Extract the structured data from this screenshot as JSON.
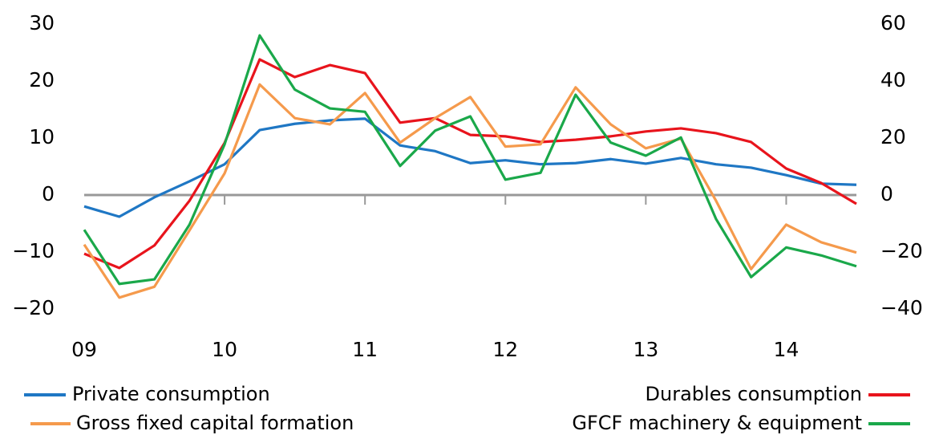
{
  "chart_data": {
    "type": "line",
    "categories": [
      "09",
      null,
      null,
      null,
      "10",
      null,
      null,
      null,
      "11",
      null,
      null,
      null,
      "12",
      null,
      null,
      null,
      "13",
      null,
      null,
      null,
      "14",
      null,
      null
    ],
    "series": [
      {
        "name": "Private consumption",
        "color": "#1f77c4",
        "axis": "y",
        "values": [
          -2.0,
          -3.8,
          -0.4,
          2.4,
          5.4,
          11.4,
          12.5,
          13.1,
          13.4,
          8.7,
          7.7,
          5.6,
          6.1,
          5.4,
          5.6,
          6.3,
          5.5,
          6.5,
          5.4,
          4.8,
          3.5,
          2.0,
          1.8
        ]
      },
      {
        "name": "Durables consumption",
        "color": "#e8141c",
        "axis": "y2",
        "values": [
          -20.6,
          -25.6,
          -17.7,
          -2.0,
          18.3,
          47.6,
          41.4,
          45.6,
          42.8,
          25.4,
          27.0,
          21.1,
          20.6,
          18.6,
          19.4,
          20.6,
          22.3,
          23.4,
          21.7,
          18.6,
          9.3,
          4.2,
          -3.1
        ]
      },
      {
        "name": "Gross fixed capital formation",
        "color": "#f59a4c",
        "axis": "y",
        "values": [
          -8.7,
          -18.0,
          -16.1,
          -6.2,
          3.8,
          19.4,
          13.5,
          12.4,
          17.9,
          9.2,
          13.5,
          17.2,
          8.5,
          8.9,
          18.9,
          12.4,
          8.2,
          9.9,
          -1.0,
          -13.0,
          -5.2,
          -8.3,
          -10.1
        ]
      },
      {
        "name": "GFCF machinery & equipment",
        "color": "#1aa84a",
        "axis": "y2",
        "values": [
          -12.2,
          -31.2,
          -29.6,
          -10.4,
          17.8,
          56.0,
          37.0,
          30.4,
          29.2,
          10.2,
          22.6,
          27.6,
          5.4,
          7.8,
          35.2,
          18.4,
          13.8,
          20.2,
          -8.4,
          -28.8,
          -18.4,
          -21.2,
          -25.0
        ]
      }
    ],
    "ylim": [
      -20,
      30
    ],
    "yticks": [
      30,
      20,
      10,
      0,
      {
        "value": -10,
        "label": "−10"
      },
      {
        "value": -20,
        "label": "−20"
      }
    ],
    "y2lim": [
      -40,
      60
    ],
    "y2ticks": [
      60,
      40,
      20,
      0,
      {
        "value": -20,
        "label": "−20"
      },
      {
        "value": -40,
        "label": "−40"
      }
    ],
    "grid": false
  }
}
